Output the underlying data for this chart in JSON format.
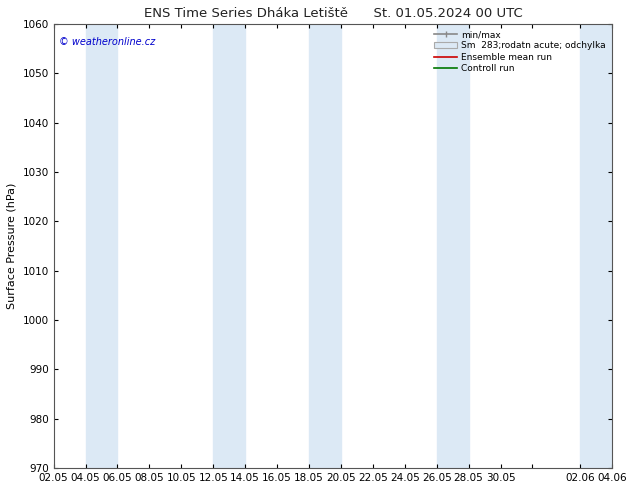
{
  "title": "ENS Time Series Dháka Letiště",
  "title2": "St. 01.05.2024 00 UTC",
  "ylabel": "Surface Pressure (hPa)",
  "ylim": [
    970,
    1060
  ],
  "yticks": [
    970,
    980,
    990,
    1000,
    1010,
    1020,
    1030,
    1040,
    1050,
    1060
  ],
  "watermark": "© weatheronline.cz",
  "legend_entries": [
    "min/max",
    "Sm  283;rodatn acute; odchylka",
    "Ensemble mean run",
    "Controll run"
  ],
  "ensemble_color": "#cc0000",
  "control_color": "#007700",
  "band_color": "#dce9f5",
  "background_color": "#ffffff",
  "title_fontsize": 9.5,
  "axis_fontsize": 8,
  "tick_fontsize": 7.5,
  "watermark_color": "#0000cc",
  "tick_positions": [
    0,
    2,
    4,
    6,
    8,
    10,
    12,
    14,
    16,
    18,
    20,
    22,
    24,
    26,
    28,
    30,
    33,
    35
  ],
  "tick_labels": [
    "02.05",
    "04.05",
    "06.05",
    "08.05",
    "10.05",
    "12.05",
    "14.05",
    "16.05",
    "18.05",
    "20.05",
    "22.05",
    "24.05",
    "26.05",
    "28.05",
    "30.05",
    "",
    "02.06",
    "04.06"
  ],
  "band_starts": [
    2,
    10,
    16,
    24,
    33
  ],
  "band_widths": [
    2,
    2,
    2,
    2,
    2
  ],
  "xlim": [
    0,
    35
  ]
}
